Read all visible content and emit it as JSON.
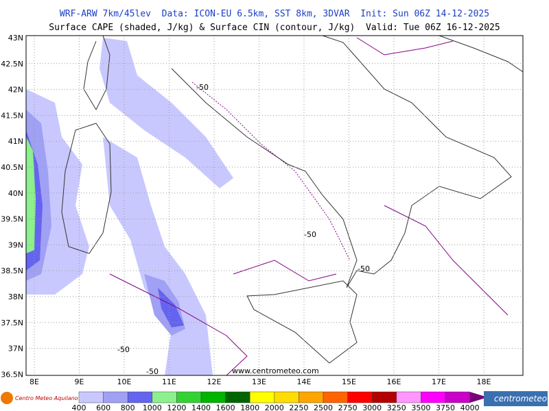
{
  "header": {
    "title": "WRF-ARW 7km/45lev  Data: ICON-EU 6.5km, SST 8km, 3DVAR  Init: Sun 06Z 14-12-2025",
    "subtitle": "Surface CAPE (shaded, J/kg) & Surface CIN (contour, J/kg)  Valid: Tue 06Z 16-12-2025"
  },
  "map": {
    "latitude_labels": [
      "43N",
      "42.5N",
      "42N",
      "41.5N",
      "41N",
      "40.5N",
      "40N",
      "39.5N",
      "39N",
      "38.5N",
      "38N",
      "37.5N",
      "37N",
      "36.5N"
    ],
    "longitude_labels": [
      "8E",
      "9E",
      "10E",
      "11E",
      "12E",
      "13E",
      "14E",
      "15E",
      "16E",
      "17E",
      "18E"
    ],
    "contour_labels": [
      "-50",
      "-50",
      "-50",
      "-50",
      "-50"
    ],
    "watermark": "www.centrometeo.com"
  },
  "colorbar": {
    "labels": [
      "400",
      "600",
      "800",
      "1000",
      "1200",
      "1400",
      "1600",
      "1800",
      "2000",
      "2250",
      "2500",
      "2750",
      "3000",
      "3250",
      "3500",
      "3750",
      "4000"
    ],
    "colors": [
      "#c8c8ff",
      "#a0a0f5",
      "#6464f0",
      "#8cf08c",
      "#32d232",
      "#00b400",
      "#006400",
      "#ffff00",
      "#ffdc00",
      "#ffa500",
      "#ff6400",
      "#ff0000",
      "#b40000",
      "#ff96ff",
      "#ff00ff",
      "#c800c8",
      "#780078"
    ]
  },
  "logos": {
    "left": "Centro Meteo Aquilano",
    "right": "centrometeo"
  }
}
